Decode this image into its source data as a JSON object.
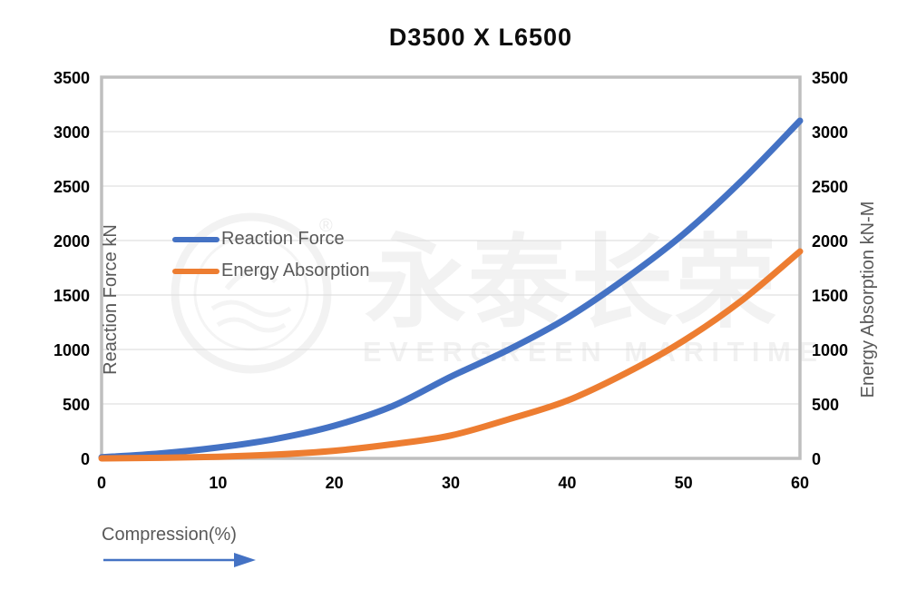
{
  "chart_data": {
    "type": "line",
    "title": "D3500 X L6500",
    "xlabel": "Compression(%)",
    "ylabel_left": "Reaction Force kN",
    "ylabel_right": "Energy Absorption kN-M",
    "xlim": [
      0,
      60
    ],
    "ylim": [
      0,
      3500
    ],
    "xticks": [
      0,
      10,
      20,
      30,
      40,
      50,
      60
    ],
    "yticks": [
      0,
      500,
      1000,
      1500,
      2000,
      2500,
      3000,
      3500
    ],
    "grid": "horizontal",
    "legend_position": "inside-upper-left",
    "x": [
      0,
      5,
      10,
      15,
      20,
      25,
      30,
      35,
      40,
      45,
      50,
      55,
      60
    ],
    "series": [
      {
        "name": "Reaction Force",
        "color": "#4472C4",
        "axis": "left",
        "values": [
          10,
          45,
          100,
          180,
          300,
          480,
          750,
          1000,
          1290,
          1650,
          2060,
          2550,
          3100
        ]
      },
      {
        "name": "Energy Absorption",
        "color": "#ED7D31",
        "axis": "right",
        "values": [
          0,
          5,
          15,
          35,
          70,
          130,
          210,
          360,
          530,
          780,
          1080,
          1450,
          1900
        ]
      }
    ]
  },
  "watermark": {
    "cn": "永泰长荣",
    "en": "EVERGREEN MARITIME",
    "registered": "®"
  },
  "colors": {
    "grid": "#D9D9D9",
    "axis_border": "#BFBFBF",
    "tick_label": "#000000",
    "axis_title_text": "#595959",
    "legend_text": "#595959",
    "arrow": "#4472C4",
    "background": "#FFFFFF"
  }
}
